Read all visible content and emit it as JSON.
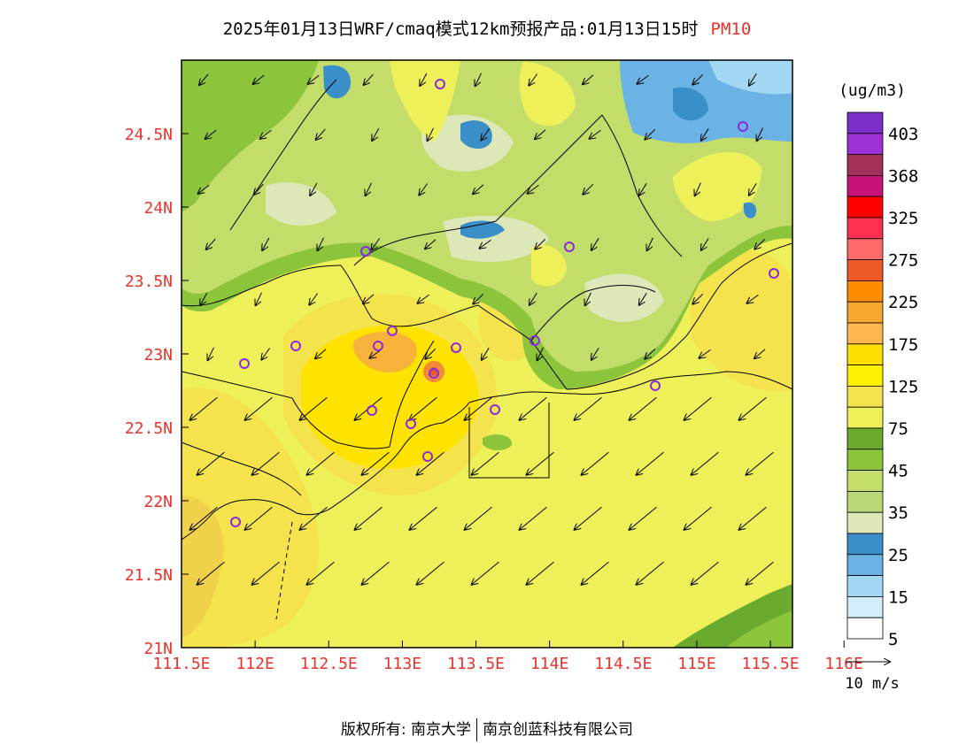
{
  "title": {
    "text": "2025年01月13日WRF/cmaq模式12km预报产品:01月13日15时",
    "pollutant": "PM10",
    "pollutant_color": "#e8332a"
  },
  "axes": {
    "label_color": "#e8332a",
    "x_ticks": [
      "111.5E",
      "112E",
      "112.5E",
      "113E",
      "113.5E",
      "114E",
      "114.5E",
      "115E",
      "115.5E",
      "116E"
    ],
    "y_ticks": [
      "21N",
      "21.5N",
      "22N",
      "22.5N",
      "23N",
      "23.5N",
      "24N",
      "24.5N"
    ]
  },
  "colorbar": {
    "unit": "(ug/m3)",
    "labels": [
      "403",
      "368",
      "325",
      "275",
      "225",
      "175",
      "125",
      "75",
      "45",
      "35",
      "25",
      "15",
      "5"
    ],
    "colors": [
      "#7b2ec9",
      "#9d31d6",
      "#a3305a",
      "#c8127a",
      "#ff0000",
      "#ff3050",
      "#ff6b6b",
      "#f05a28",
      "#ff8c00",
      "#f7a830",
      "#ffb84d",
      "#ffde00",
      "#fff200",
      "#f5e34e",
      "#eef05a",
      "#6aaa2e",
      "#8cc43c",
      "#c3dd6b",
      "#b9d87a",
      "#dde8b9",
      "#3b8fc8",
      "#6ab3e4",
      "#a3d8f4",
      "#d2ecfa",
      "#ffffff"
    ]
  },
  "wind_legend": {
    "label": "10 m/s"
  },
  "footer": {
    "left": "版权所有: 南京大学",
    "right": "南京创蓝科技有限公司"
  }
}
